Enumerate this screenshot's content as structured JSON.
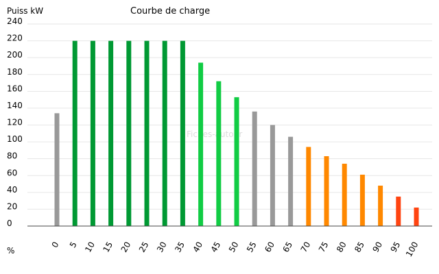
{
  "chart_data": {
    "type": "bar",
    "title": "Courbe de charge",
    "ylabel": "Puiss kW",
    "xlabel": "%",
    "watermark": "Fiches-auto.fr",
    "ylim": [
      0,
      240
    ],
    "yticks": [
      0,
      20,
      40,
      60,
      80,
      100,
      120,
      140,
      160,
      180,
      200,
      220,
      240
    ],
    "categories": [
      "0",
      "5",
      "10",
      "15",
      "20",
      "25",
      "30",
      "35",
      "40",
      "45",
      "50",
      "55",
      "60",
      "65",
      "70",
      "75",
      "80",
      "85",
      "90",
      "95",
      "100"
    ],
    "values": [
      134,
      220,
      220,
      220,
      220,
      220,
      220,
      220,
      194,
      172,
      153,
      136,
      120,
      106,
      94,
      83,
      74,
      61,
      48,
      35,
      22
    ],
    "colors": [
      "#999999",
      "#009933",
      "#009933",
      "#009933",
      "#009933",
      "#009933",
      "#009933",
      "#009933",
      "#11cc44",
      "#11cc44",
      "#11cc44",
      "#999999",
      "#999999",
      "#999999",
      "#ff8800",
      "#ff8800",
      "#ff8800",
      "#ff8800",
      "#ff8800",
      "#ff4411",
      "#ff4411"
    ],
    "grid": true
  }
}
